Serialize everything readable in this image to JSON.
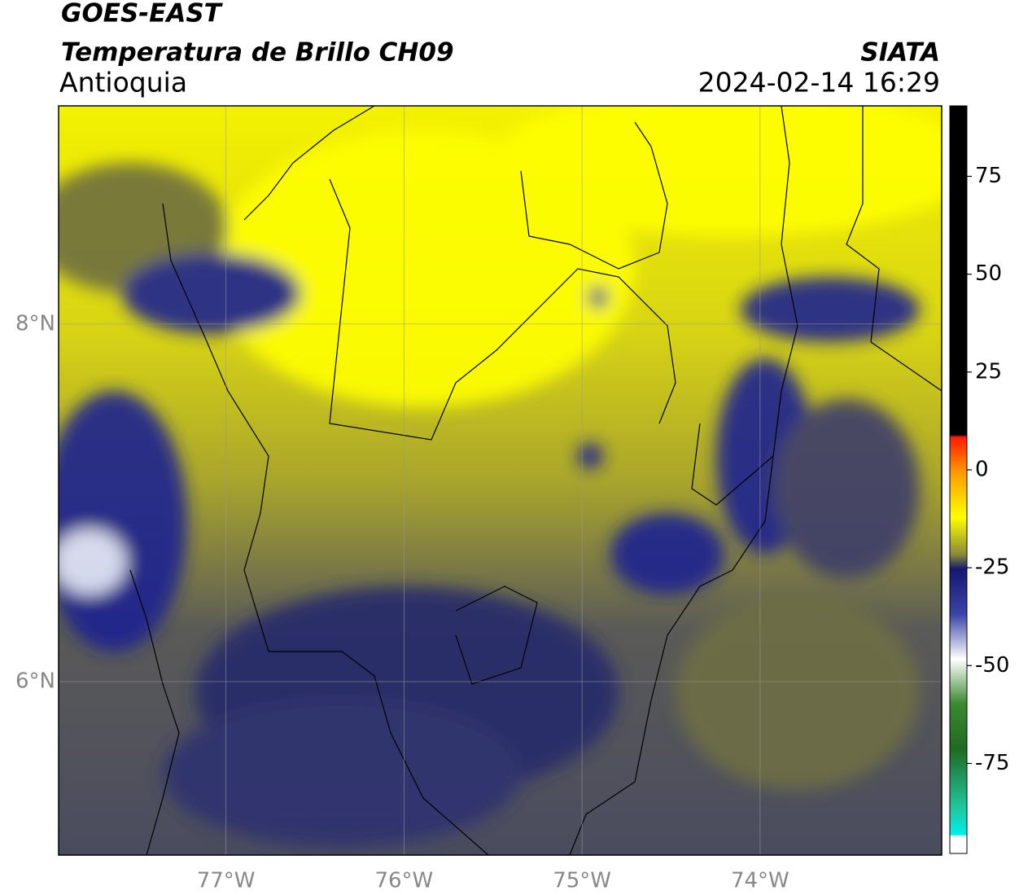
{
  "header": {
    "title": "GOES-EAST",
    "subtitle": "Temperatura de Brillo CH09",
    "region": "Antioquia",
    "source": "SIATA",
    "datetime": "2024-02-14 16:29"
  },
  "chart_data": {
    "type": "map",
    "xlim": [
      -77.94,
      -72.98
    ],
    "ylim": [
      5.03,
      9.22
    ],
    "xticks": [
      {
        "value": -77,
        "label": "77°W"
      },
      {
        "value": -76,
        "label": "76°W"
      },
      {
        "value": -75,
        "label": "75°W"
      },
      {
        "value": -74,
        "label": "74°W"
      }
    ],
    "yticks": [
      {
        "value": 6,
        "label": "6°N"
      },
      {
        "value": 8,
        "label": "8°N"
      }
    ],
    "grid": true,
    "colorbar": {
      "clim": [
        -98,
        93
      ],
      "ticks": [
        -75,
        -50,
        -25,
        0,
        25,
        50,
        75
      ]
    }
  }
}
